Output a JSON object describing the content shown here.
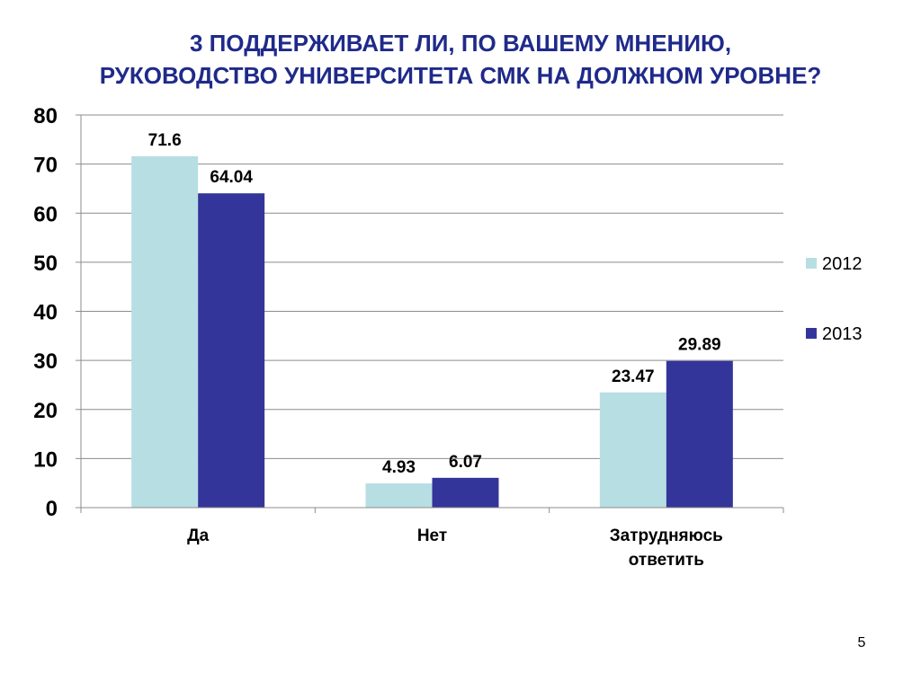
{
  "slide": {
    "title_line1": "3   ПОДДЕРЖИВАЕТ ЛИ, ПО ВАШЕМУ МНЕНИЮ,",
    "title_line2": "РУКОВОДСТВО УНИВЕРСИТЕТА СМК НА ДОЛЖНОМ УРОВНЕ?",
    "page_number": "5",
    "title_color": "#1f2a8a"
  },
  "chart_data": {
    "type": "bar",
    "categories": [
      [
        "Да"
      ],
      [
        "Нет"
      ],
      [
        "Затрудняюсь",
        "ответить"
      ]
    ],
    "series": [
      {
        "name": "2012",
        "values": [
          71.6,
          4.93,
          23.47
        ],
        "labels": [
          "71.6",
          "4.93",
          "23.47"
        ],
        "color": "#b7dee2"
      },
      {
        "name": "2013",
        "values": [
          64.04,
          6.07,
          29.89
        ],
        "labels": [
          "64.04",
          "6.07",
          "29.89"
        ],
        "color": "#34359a"
      }
    ],
    "ylim": [
      0,
      80
    ],
    "yticks": [
      "0",
      "10",
      "20",
      "30",
      "40",
      "50",
      "60",
      "70",
      "80"
    ],
    "grid": true,
    "legend": "right",
    "xlabel": "",
    "ylabel": ""
  }
}
